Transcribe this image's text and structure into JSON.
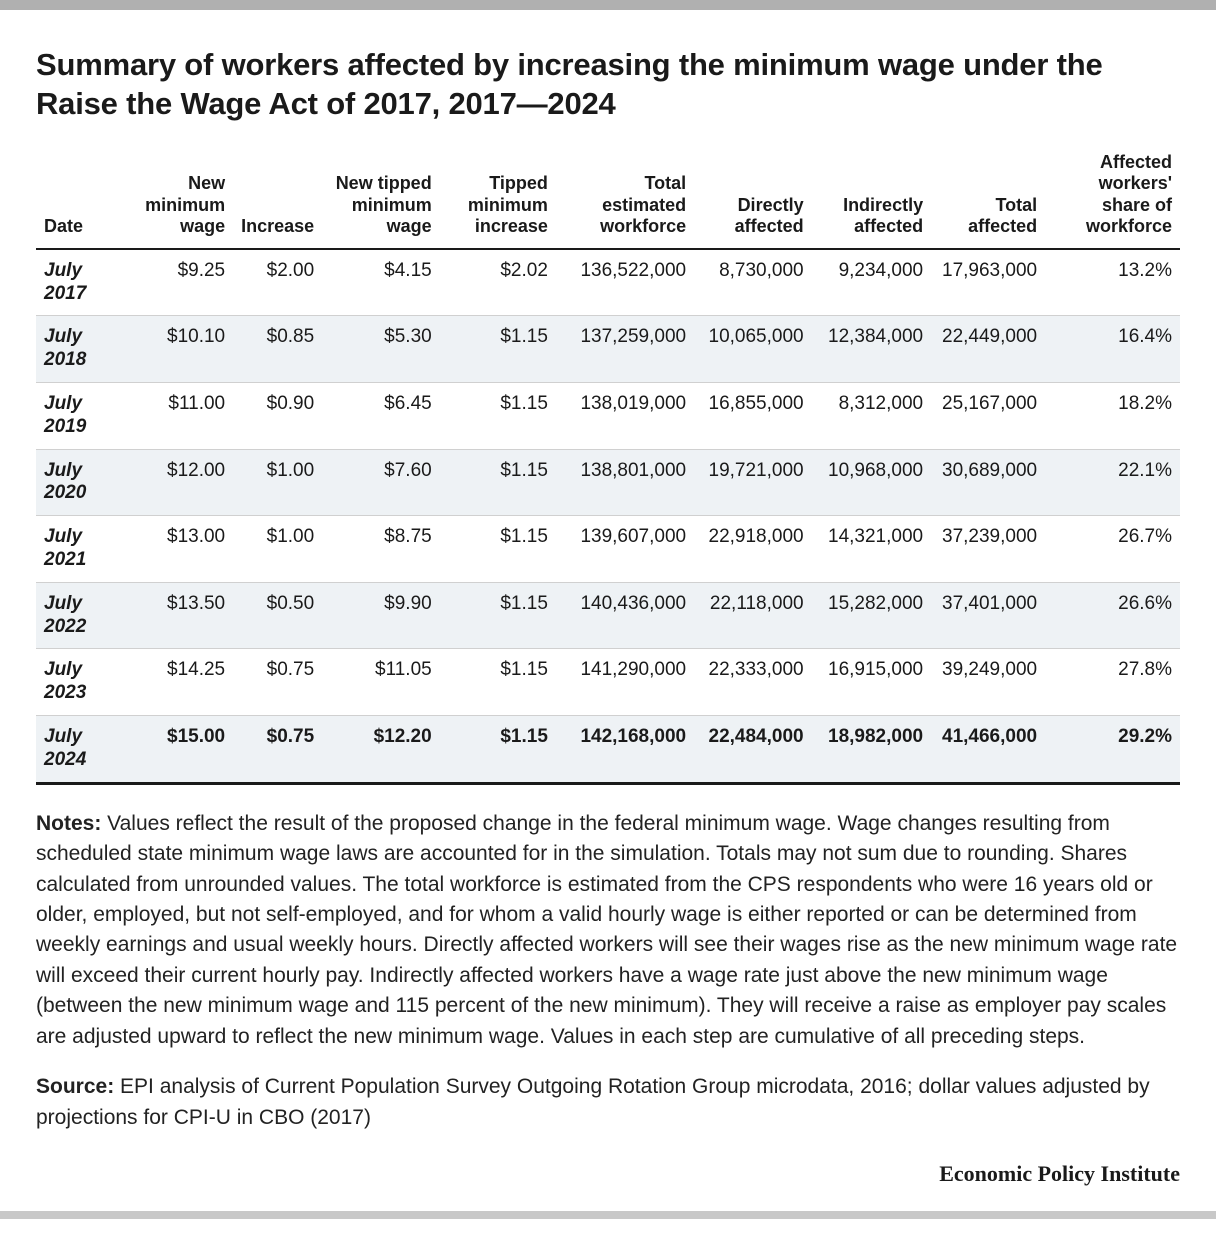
{
  "title": "Summary of workers affected by increasing the minimum wage under the Raise the Wage Act of 2017, 2017—2024",
  "table": {
    "columns": [
      "Date",
      "New minimum wage",
      "Increase",
      "New tipped minimum wage",
      "Tipped minimum increase",
      "Total estimated workforce",
      "Directly affected",
      "Indirectly affected",
      "Total affected",
      "Affected workers' share of workforce"
    ],
    "rows": [
      {
        "date": "July 2017",
        "cells": [
          "$9.25",
          "$2.00",
          "$4.15",
          "$2.02",
          "136,522,000",
          "8,730,000",
          "9,234,000",
          "17,963,000",
          "13.2%"
        ],
        "shaded": false,
        "bold": false
      },
      {
        "date": "July 2018",
        "cells": [
          "$10.10",
          "$0.85",
          "$5.30",
          "$1.15",
          "137,259,000",
          "10,065,000",
          "12,384,000",
          "22,449,000",
          "16.4%"
        ],
        "shaded": true,
        "bold": false
      },
      {
        "date": "July 2019",
        "cells": [
          "$11.00",
          "$0.90",
          "$6.45",
          "$1.15",
          "138,019,000",
          "16,855,000",
          "8,312,000",
          "25,167,000",
          "18.2%"
        ],
        "shaded": false,
        "bold": false
      },
      {
        "date": "July 2020",
        "cells": [
          "$12.00",
          "$1.00",
          "$7.60",
          "$1.15",
          "138,801,000",
          "19,721,000",
          "10,968,000",
          "30,689,000",
          "22.1%"
        ],
        "shaded": true,
        "bold": false
      },
      {
        "date": "July 2021",
        "cells": [
          "$13.00",
          "$1.00",
          "$8.75",
          "$1.15",
          "139,607,000",
          "22,918,000",
          "14,321,000",
          "37,239,000",
          "26.7%"
        ],
        "shaded": false,
        "bold": false
      },
      {
        "date": "July 2022",
        "cells": [
          "$13.50",
          "$0.50",
          "$9.90",
          "$1.15",
          "140,436,000",
          "22,118,000",
          "15,282,000",
          "37,401,000",
          "26.6%"
        ],
        "shaded": true,
        "bold": false
      },
      {
        "date": "July 2023",
        "cells": [
          "$14.25",
          "$0.75",
          "$11.05",
          "$1.15",
          "141,290,000",
          "22,333,000",
          "16,915,000",
          "39,249,000",
          "27.8%"
        ],
        "shaded": false,
        "bold": false
      },
      {
        "date": "July 2024",
        "cells": [
          "$15.00",
          "$0.75",
          "$12.20",
          "$1.15",
          "142,168,000",
          "22,484,000",
          "18,982,000",
          "41,466,000",
          "29.2%"
        ],
        "shaded": true,
        "bold": true
      }
    ]
  },
  "notes_label": "Notes:",
  "notes_text": " Values reflect the result of the proposed change in the federal minimum wage. Wage changes resulting from scheduled state minimum wage laws are accounted for in the simulation. Totals may not sum due to rounding. Shares calculated from unrounded values. The total workforce  is estimated from the CPS respondents who were 16 years old or older, employed, but not self-employed, and for whom a valid hourly wage is either reported or can be determined from weekly earnings and usual weekly hours. Directly affected workers will see their wages rise as the new minimum wage rate will exceed their current hourly pay. Indirectly affected workers  have a wage rate just above the new minimum wage (between the new minimum wage and 115 percent of the new minimum).  They will receive a raise as employer pay scales are adjusted upward to reflect the new minimum wage. Values in each step are cumulative of all preceding steps.",
  "source_label": "Source:",
  "source_text": " EPI analysis of Current Population Survey Outgoing Rotation Group microdata, 2016; dollar values adjusted by projections for CPI-U in CBO (2017)",
  "attribution": "Economic Policy Institute"
}
